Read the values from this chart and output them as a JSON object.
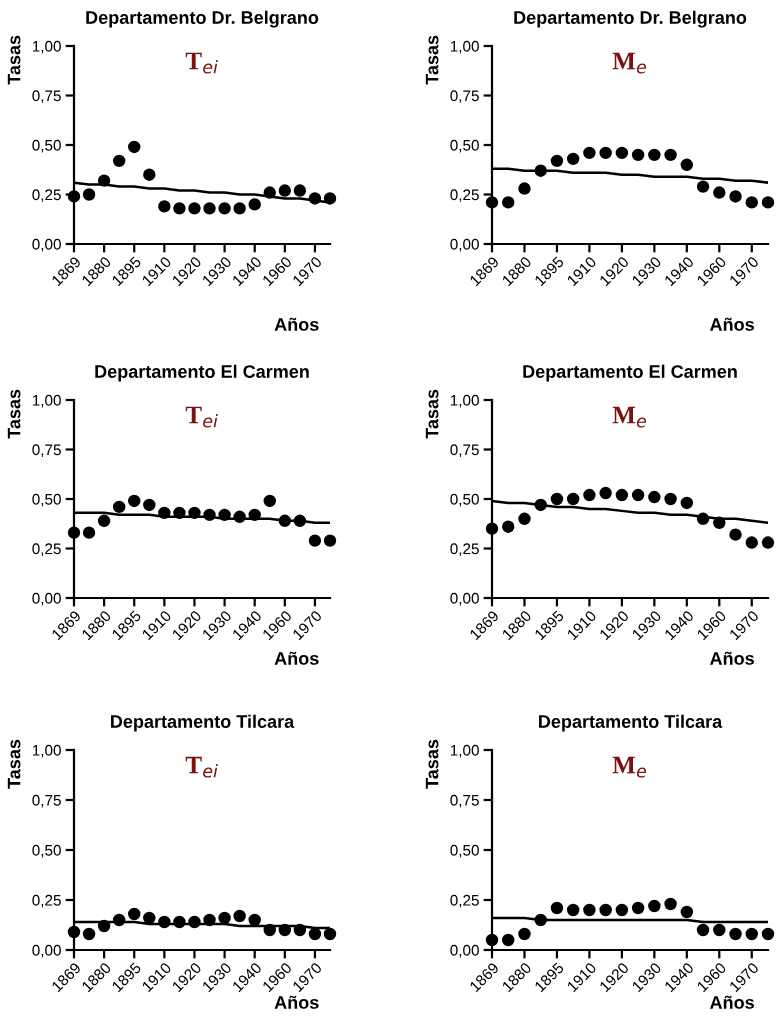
{
  "chart_data": [
    {
      "type": "scatter",
      "title": "Departamento Dr. Belgrano",
      "subtitle": "T$_{ei}$",
      "xlabel": "Años",
      "ylabel": "Tasas",
      "grid": false,
      "categories": [
        "1869",
        null,
        "1880",
        null,
        "1895",
        null,
        "1910",
        null,
        "1920",
        null,
        "1930",
        null,
        "1940",
        null,
        "1960",
        null,
        "1970",
        null
      ],
      "ylim": [
        0,
        1
      ],
      "yticks": [
        {
          "value": 0,
          "label": "0,00"
        },
        {
          "value": 0.25,
          "label": "0,25"
        },
        {
          "value": 0.5,
          "label": "0,50"
        },
        {
          "value": 0.75,
          "label": "0,75"
        },
        {
          "value": 1,
          "label": "1,00"
        }
      ],
      "series": [
        {
          "marker": "circle",
          "color": "#000000",
          "values": [
            0.24,
            0.25,
            0.32,
            0.42,
            0.49,
            0.35,
            0.19,
            0.18,
            0.18,
            0.18,
            0.18,
            0.18,
            0.2,
            0.26,
            0.27,
            0.27,
            0.23,
            0.23
          ]
        },
        {
          "type": "line",
          "color": "#000000",
          "values": [
            0.31,
            0.3,
            0.3,
            0.29,
            0.29,
            0.28,
            0.28,
            0.27,
            0.27,
            0.26,
            0.26,
            0.25,
            0.25,
            0.24,
            0.23,
            0.23,
            0.22,
            0.21
          ]
        }
      ]
    },
    {
      "type": "scatter",
      "title": "Departamento Dr. Belgrano",
      "subtitle": "M$_{e}$",
      "xlabel": "Años",
      "ylabel": "Tasas",
      "grid": false,
      "categories": [
        "1869",
        null,
        "1880",
        null,
        "1895",
        null,
        "1910",
        null,
        "1920",
        null,
        "1930",
        null,
        "1940",
        null,
        "1960",
        null,
        "1970",
        null
      ],
      "ylim": [
        0,
        1
      ],
      "yticks": [
        {
          "value": 0,
          "label": "0,00"
        },
        {
          "value": 0.25,
          "label": "0,25"
        },
        {
          "value": 0.5,
          "label": "0,50"
        },
        {
          "value": 0.75,
          "label": "0,75"
        },
        {
          "value": 1,
          "label": "1,00"
        }
      ],
      "series": [
        {
          "marker": "circle",
          "color": "#000000",
          "values": [
            0.21,
            0.21,
            0.28,
            0.37,
            0.42,
            0.43,
            0.46,
            0.46,
            0.46,
            0.45,
            0.45,
            0.45,
            0.4,
            0.29,
            0.26,
            0.24,
            0.21,
            0.21
          ]
        },
        {
          "type": "line",
          "color": "#000000",
          "values": [
            0.38,
            0.38,
            0.37,
            0.37,
            0.37,
            0.36,
            0.36,
            0.36,
            0.35,
            0.35,
            0.34,
            0.34,
            0.34,
            0.33,
            0.33,
            0.32,
            0.32,
            0.31
          ]
        }
      ]
    },
    {
      "type": "scatter",
      "title": "Departamento El Carmen",
      "subtitle": "T$_{ei}$",
      "xlabel": "Años",
      "ylabel": "Tasas",
      "grid": false,
      "categories": [
        "1869",
        null,
        "1880",
        null,
        "1895",
        null,
        "1910",
        null,
        "1920",
        null,
        "1930",
        null,
        "1940",
        null,
        "1960",
        null,
        "1970",
        null
      ],
      "ylim": [
        0,
        1
      ],
      "yticks": [
        {
          "value": 0,
          "label": "0,00"
        },
        {
          "value": 0.25,
          "label": "0,25"
        },
        {
          "value": 0.5,
          "label": "0,50"
        },
        {
          "value": 0.75,
          "label": "0,75"
        },
        {
          "value": 1,
          "label": "1,00"
        }
      ],
      "series": [
        {
          "marker": "circle",
          "color": "#000000",
          "values": [
            0.33,
            0.33,
            0.39,
            0.46,
            0.49,
            0.47,
            0.43,
            0.43,
            0.43,
            0.42,
            0.42,
            0.41,
            0.42,
            0.49,
            0.39,
            0.39,
            0.29,
            0.29
          ]
        },
        {
          "type": "line",
          "color": "#000000",
          "values": [
            0.43,
            0.43,
            0.43,
            0.42,
            0.42,
            0.42,
            0.41,
            0.41,
            0.41,
            0.41,
            0.4,
            0.4,
            0.4,
            0.4,
            0.39,
            0.39,
            0.38,
            0.38
          ]
        }
      ]
    },
    {
      "type": "scatter",
      "title": "Departamento El Carmen",
      "subtitle": "M$_{e}$",
      "xlabel": "Años",
      "ylabel": "Tasas",
      "grid": false,
      "categories": [
        "1869",
        null,
        "1880",
        null,
        "1895",
        null,
        "1910",
        null,
        "1920",
        null,
        "1930",
        null,
        "1940",
        null,
        "1960",
        null,
        "1970",
        null
      ],
      "ylim": [
        0,
        1
      ],
      "yticks": [
        {
          "value": 0,
          "label": "0,00"
        },
        {
          "value": 0.25,
          "label": "0,25"
        },
        {
          "value": 0.5,
          "label": "0,50"
        },
        {
          "value": 0.75,
          "label": "0,75"
        },
        {
          "value": 1,
          "label": "1,00"
        }
      ],
      "series": [
        {
          "marker": "circle",
          "color": "#000000",
          "values": [
            0.35,
            0.36,
            0.4,
            0.47,
            0.5,
            0.5,
            0.52,
            0.53,
            0.52,
            0.52,
            0.51,
            0.5,
            0.48,
            0.4,
            0.38,
            0.32,
            0.28,
            0.28
          ]
        },
        {
          "type": "line",
          "color": "#000000",
          "values": [
            0.49,
            0.48,
            0.48,
            0.47,
            0.46,
            0.46,
            0.45,
            0.45,
            0.44,
            0.43,
            0.43,
            0.42,
            0.42,
            0.41,
            0.4,
            0.4,
            0.39,
            0.38
          ]
        }
      ]
    },
    {
      "type": "scatter",
      "title": "Departamento Tilcara",
      "subtitle": "T$_{ei}$",
      "xlabel": "Años",
      "ylabel": "Tasas",
      "grid": false,
      "categories": [
        "1869",
        null,
        "1880",
        null,
        "1895",
        null,
        "1910",
        null,
        "1920",
        null,
        "1930",
        null,
        "1940",
        null,
        "1960",
        null,
        "1970",
        null
      ],
      "ylim": [
        0,
        1
      ],
      "yticks": [
        {
          "value": 0,
          "label": "0,00"
        },
        {
          "value": 0.25,
          "label": "0,25"
        },
        {
          "value": 0.5,
          "label": "0,50"
        },
        {
          "value": 0.75,
          "label": "0,75"
        },
        {
          "value": 1,
          "label": "1,00"
        }
      ],
      "series": [
        {
          "marker": "circle",
          "color": "#000000",
          "values": [
            0.09,
            0.08,
            0.12,
            0.15,
            0.18,
            0.16,
            0.14,
            0.14,
            0.14,
            0.15,
            0.16,
            0.17,
            0.15,
            0.1,
            0.1,
            0.1,
            0.08,
            0.08
          ]
        },
        {
          "type": "line",
          "color": "#000000",
          "values": [
            0.14,
            0.14,
            0.14,
            0.14,
            0.14,
            0.13,
            0.13,
            0.13,
            0.13,
            0.13,
            0.13,
            0.12,
            0.12,
            0.12,
            0.12,
            0.12,
            0.11,
            0.11
          ]
        }
      ]
    },
    {
      "type": "scatter",
      "title": "Departamento Tilcara",
      "subtitle": "M$_{e}$",
      "xlabel": "Años",
      "ylabel": "Tasas",
      "grid": false,
      "categories": [
        "1869",
        null,
        "1880",
        null,
        "1895",
        null,
        "1910",
        null,
        "1920",
        null,
        "1930",
        null,
        "1940",
        null,
        "1960",
        null,
        "1970",
        null
      ],
      "ylim": [
        0,
        1
      ],
      "yticks": [
        {
          "value": 0,
          "label": "0,00"
        },
        {
          "value": 0.25,
          "label": "0,25"
        },
        {
          "value": 0.5,
          "label": "0,50"
        },
        {
          "value": 0.75,
          "label": "0,75"
        },
        {
          "value": 1,
          "label": "1,00"
        }
      ],
      "series": [
        {
          "marker": "circle",
          "color": "#000000",
          "values": [
            0.05,
            0.05,
            0.08,
            0.15,
            0.21,
            0.2,
            0.2,
            0.2,
            0.2,
            0.21,
            0.22,
            0.23,
            0.19,
            0.1,
            0.1,
            0.08,
            0.08,
            0.08
          ]
        },
        {
          "type": "line",
          "color": "#000000",
          "values": [
            0.16,
            0.16,
            0.16,
            0.15,
            0.15,
            0.15,
            0.15,
            0.15,
            0.15,
            0.15,
            0.15,
            0.15,
            0.15,
            0.14,
            0.14,
            0.14,
            0.14,
            0.14
          ]
        }
      ]
    }
  ]
}
